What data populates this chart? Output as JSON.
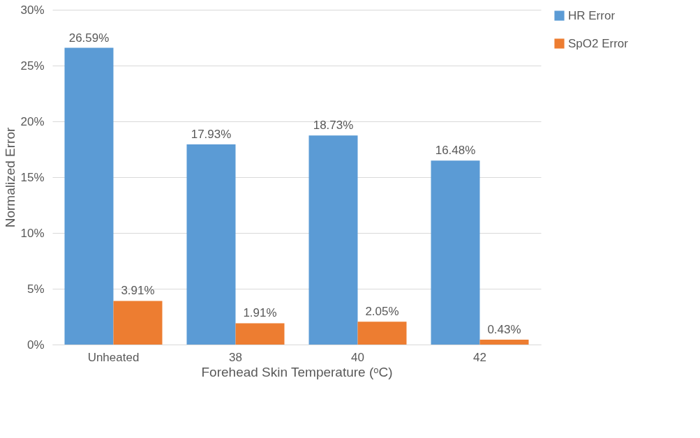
{
  "chart_data": {
    "type": "bar",
    "xlabel": "Forehead Skin Temperature (ᵒC)",
    "ylabel": "Normalized Error",
    "categories": [
      "Unheated",
      "38",
      "40",
      "42"
    ],
    "series": [
      {
        "name": "HR Error",
        "color": "#5b9bd5",
        "values": [
          26.59,
          17.93,
          18.73,
          16.48
        ],
        "value_labels": [
          "26.59%",
          "17.93%",
          "18.73%",
          "16.48%"
        ]
      },
      {
        "name": "SpO2 Error",
        "color": "#ed7d31",
        "values": [
          3.91,
          1.91,
          2.05,
          0.43
        ],
        "value_labels": [
          "3.91%",
          "1.91%",
          "2.05%",
          "0.43%"
        ]
      }
    ],
    "ylim": [
      0,
      30
    ],
    "yticks": [
      {
        "value": 0,
        "label": "0%"
      },
      {
        "value": 5,
        "label": "5%"
      },
      {
        "value": 10,
        "label": "10%"
      },
      {
        "value": 15,
        "label": "15%"
      },
      {
        "value": 20,
        "label": "20%"
      },
      {
        "value": 25,
        "label": "25%"
      },
      {
        "value": 30,
        "label": "30%"
      }
    ],
    "grid": "y",
    "legend": "right"
  }
}
